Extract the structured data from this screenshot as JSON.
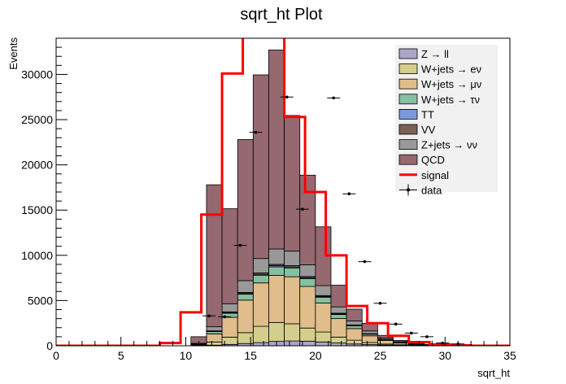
{
  "chart_data": {
    "type": "bar",
    "title": "sqrt_ht Plot",
    "xlabel": "sqrt_ht",
    "ylabel": "Events",
    "xlim": [
      0,
      35
    ],
    "ylim": [
      0,
      34000
    ],
    "x_ticks": [
      "0",
      "5",
      "10",
      "15",
      "20",
      "25",
      "30",
      "35"
    ],
    "y_ticks": [
      "0",
      "5000",
      "10000",
      "15000",
      "20000",
      "25000",
      "30000"
    ],
    "legend_position": "top-right",
    "bin_edges": [
      10.4,
      11.6,
      12.8,
      14.0,
      15.2,
      16.4,
      17.6,
      18.8,
      20.0,
      21.2,
      22.4,
      23.6,
      24.8,
      26.0,
      27.2,
      28.4,
      29.6,
      30.8
    ],
    "stack": [
      {
        "name": "Z → ll",
        "color": "#a9a6c9",
        "values": [
          30,
          70,
          150,
          250,
          350,
          480,
          530,
          510,
          420,
          310,
          200,
          130,
          80,
          50,
          25,
          10,
          5
        ]
      },
      {
        "name": "W+jets → eν",
        "color": "#d3cf8b",
        "values": [
          60,
          350,
          800,
          1200,
          1800,
          2100,
          1900,
          1450,
          1100,
          650,
          420,
          230,
          110,
          60,
          30,
          15,
          5
        ]
      },
      {
        "name": "W+jets → μν",
        "color": "#e0bd8a",
        "values": [
          70,
          900,
          2200,
          3600,
          4800,
          5200,
          5200,
          4600,
          3200,
          2050,
          1280,
          740,
          390,
          190,
          80,
          35,
          12
        ]
      },
      {
        "name": "W+jets → τν",
        "color": "#85c0a0",
        "values": [
          20,
          250,
          450,
          650,
          850,
          950,
          950,
          850,
          650,
          450,
          300,
          180,
          100,
          50,
          25,
          10,
          5
        ]
      },
      {
        "name": "TT",
        "color": "#7b99db",
        "values": [
          5,
          30,
          60,
          80,
          100,
          120,
          130,
          110,
          80,
          60,
          40,
          20,
          10,
          5,
          5,
          2,
          1
        ]
      },
      {
        "name": "VV",
        "color": "#7b6252",
        "values": [
          5,
          50,
          90,
          120,
          150,
          150,
          150,
          140,
          100,
          80,
          60,
          40,
          20,
          10,
          5,
          2,
          1
        ]
      },
      {
        "name": "Z+jets → νν",
        "color": "#999999",
        "values": [
          80,
          450,
          900,
          1300,
          1600,
          1700,
          1600,
          1300,
          1100,
          700,
          450,
          300,
          150,
          80,
          50,
          20,
          10
        ]
      },
      {
        "name": "QCD",
        "color": "#966870",
        "values": [
          730,
          15700,
          10500,
          15600,
          20300,
          22000,
          15000,
          9900,
          6500,
          2400,
          1300,
          850,
          290,
          150,
          80,
          46,
          21
        ]
      }
    ],
    "signal": {
      "name": "signal",
      "color": "#ff0000",
      "edges": [
        0,
        8.0,
        9.6,
        11.2,
        12.8,
        14.4,
        16.0,
        17.6,
        19.2,
        20.8,
        22.4,
        24.0,
        25.6,
        27.2,
        28.8,
        30.4,
        32.0,
        35.0
      ],
      "values": [
        0,
        300,
        3700,
        14500,
        30100,
        36000,
        38000,
        25300,
        17000,
        10000,
        4400,
        2500,
        1100,
        400,
        150,
        50,
        0
      ]
    },
    "data": {
      "name": "data",
      "x": [
        11.8,
        13.0,
        14.2,
        15.4,
        17.8,
        19.0,
        21.4,
        22.6,
        23.8,
        25.0,
        26.2,
        27.4,
        28.6,
        29.8,
        31.0
      ],
      "y": [
        3300,
        3200,
        11100,
        23600,
        27500,
        15100,
        27400,
        16800,
        9300,
        4700,
        2400,
        1400,
        1000,
        300,
        200
      ],
      "xerr": 0.5
    }
  }
}
